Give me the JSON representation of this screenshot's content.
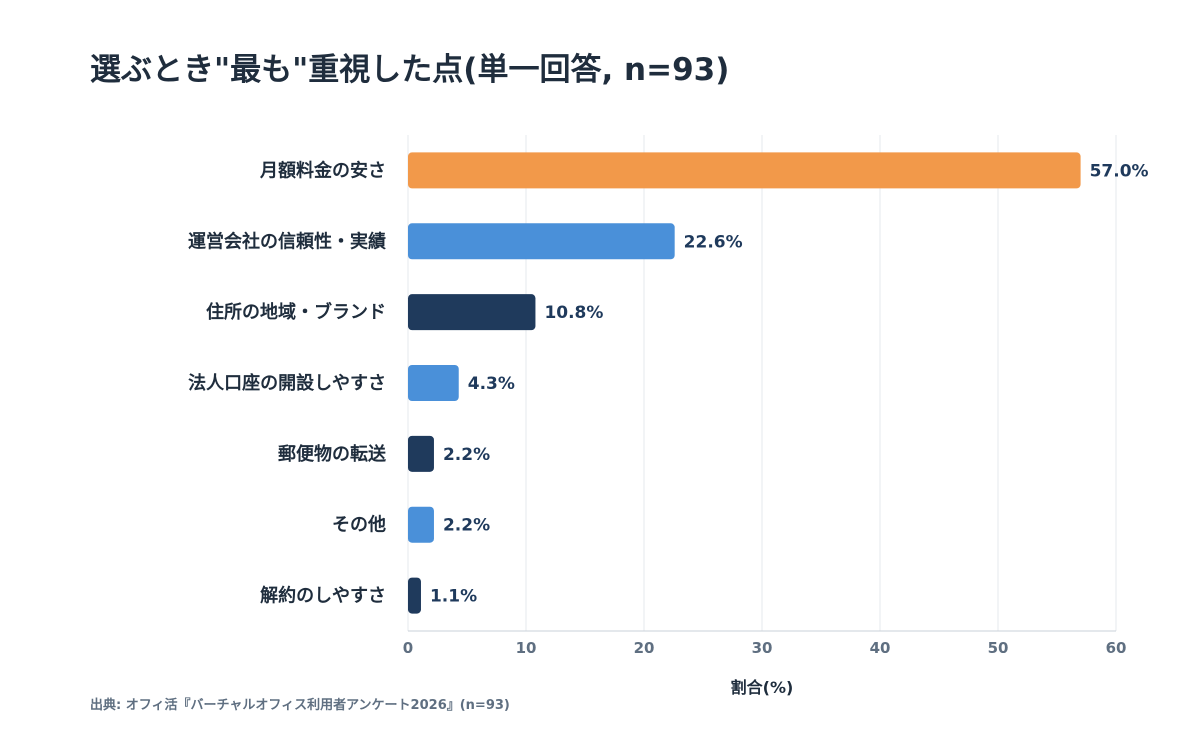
{
  "chart_data": {
    "type": "bar",
    "orientation": "horizontal",
    "title": "選ぶとき\"最も\"重視した点(単一回答, n=93)",
    "categories": [
      "月額料金の安さ",
      "運営会社の信頼性・実績",
      "住所の地域・ブランド",
      "法人口座の開設しやすさ",
      "郵便物の転送",
      "その他",
      "解約のしやすさ"
    ],
    "values": [
      57.0,
      22.6,
      10.8,
      4.3,
      2.2,
      2.2,
      1.1
    ],
    "value_labels": [
      "57.0%",
      "22.6%",
      "10.8%",
      "4.3%",
      "2.2%",
      "2.2%",
      "1.1%"
    ],
    "bar_colors": [
      "#F2994A",
      "#4A90D9",
      "#1F3A5C",
      "#4A90D9",
      "#1F3A5C",
      "#4A90D9",
      "#1F3A5C"
    ],
    "xlim": [
      0,
      60
    ],
    "xticks": [
      "0",
      "10",
      "20",
      "30",
      "40",
      "50",
      "60"
    ],
    "xlabel": "割合(%)",
    "ylabel": "",
    "grid": "vertical",
    "source_note": "出典: オフィ活『バーチャルオフィス利用者アンケート2026』(n=93)"
  }
}
